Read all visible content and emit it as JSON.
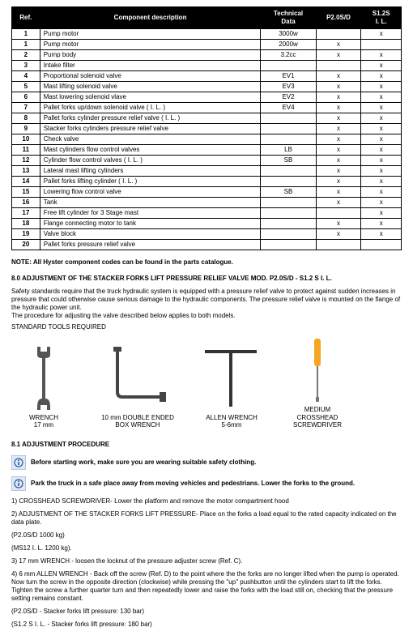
{
  "table": {
    "headers": [
      "Ref.",
      "Component description",
      "Technical\nData",
      "P2.0S/D",
      "S1.2S\nI. L."
    ],
    "rows": [
      [
        "1",
        "Pump motor",
        "3000w",
        "",
        "x"
      ],
      [
        "1",
        "Pump motor",
        "2000w",
        "x",
        ""
      ],
      [
        "2",
        "Pump body",
        "3.2cc",
        "x",
        "x"
      ],
      [
        "3",
        "Intake filter",
        "",
        "",
        "x"
      ],
      [
        "4",
        "Proportional solenoid valve",
        "EV1",
        "x",
        "x"
      ],
      [
        "5",
        "Mast lifting solenoid valve",
        "EV3",
        "x",
        "x"
      ],
      [
        "6",
        "Mast lowering solenoid vlave",
        "EV2",
        "x",
        "x"
      ],
      [
        "7",
        "Pallet forks up/down solenoid valve ( I. L. )",
        "EV4",
        "x",
        "x"
      ],
      [
        "8",
        "Pallet forks cylinder pressure relief valve ( I. L. )",
        "",
        "x",
        "x"
      ],
      [
        "9",
        "Stacker forks cylinders pressure relief valve",
        "",
        "x",
        "x"
      ],
      [
        "10",
        "Check valve",
        "",
        "x",
        "x"
      ],
      [
        "11",
        "Mast cylinders flow control valves",
        "LB",
        "x",
        "x"
      ],
      [
        "12",
        "Cylinder flow control valves ( I. L. )",
        "SB",
        "x",
        "x"
      ],
      [
        "13",
        "Lateral mast lifting cylinders",
        "",
        "x",
        "x"
      ],
      [
        "14",
        "Pallet forks lifting cylinder ( I. L. )",
        "",
        "x",
        "x"
      ],
      [
        "15",
        "Lowering flow control valve",
        "SB",
        "x",
        "x"
      ],
      [
        "16",
        "Tank",
        "",
        "x",
        "x"
      ],
      [
        "17",
        "Free lift cylinder for 3 Stage mast",
        "",
        "",
        "x"
      ],
      [
        "18",
        "Flange connecting motor to tank",
        "",
        "x",
        "x"
      ],
      [
        "19",
        "Valve block",
        "",
        "x",
        "x"
      ],
      [
        "20",
        "Pallet forks pressure relief valve",
        "",
        "",
        ""
      ]
    ]
  },
  "note": "NOTE: All Hyster component codes can be found in the parts catalogue.",
  "section80_title": "8.0 ADJUSTMENT OF THE STACKER FORKS LIFT PRESSURE RELIEF VALVE MOD. P2.0S/D - S1.2 S I. L.",
  "section80_body": "Safety standards require that the truck hydraulic system is equipped with a pressure relief valve to protect against sudden increases in pressure that could otherwise cause serious damage to the hydraulic components. The pressure relief valve is mounted on the flange of the hydraulic power unit.\nThe procedure for adjusting the valve described below applies to both models.",
  "tools_title": "STANDARD TOOLS REQUIRED",
  "tools": [
    {
      "label1": "WRENCH",
      "label2": "17 mm"
    },
    {
      "label1": "10 mm DOUBLE ENDED",
      "label2": "BOX WRENCH"
    },
    {
      "label1": "ALLEN WRENCH",
      "label2": "5-6mm"
    },
    {
      "label1": "MEDIUM",
      "label2": "CROSSHEAD",
      "label3": "SCREWDRIVER"
    }
  ],
  "section81_title": "8.1 ADJUSTMENT PROCEDURE",
  "warn1": "Before starting work, make sure you are wearing suitable safety clothing.",
  "warn2": "Park the truck in a safe place away from moving vehicles and pedestrians. Lower the forks to the ground.",
  "steps": [
    "1) CROSSHEAD SCREWDRIVER- Lower the platform and remove the motor compartment hood",
    "2) ADJUSTMENT OF THE STACKER FORKS LIFT PRESSURE- Place on the forks a load equal to the rated capacity indicated on the data plate.",
    "(P2.0S/D 1000 kg)",
    "(MS12 I. L. 1200 kg).",
    "3) 17 mm WRENCH - loosen the locknut of the pressure adjuster screw (Ref. C).",
    "4) 6 mm ALLEN WRENCH - Back off the screw (Ref. D) to the point where the the forks are no longer lifted when the pump is operated. Now turn the screw in the opposite direction (clockwise) while pressing the \"up\" pushbutton until the cylinders start to lift the forks. Tighten the screw a further quarter turn and then repeatedly lower and raise the forks with the load still on, checking that the pressure setting remains constant.",
    "(P2.0S/D - Stacker forks lift pressure: 130 bar)",
    "(S1.2 S I. L. - Stacker forks lift pressure: 180 bar)"
  ]
}
